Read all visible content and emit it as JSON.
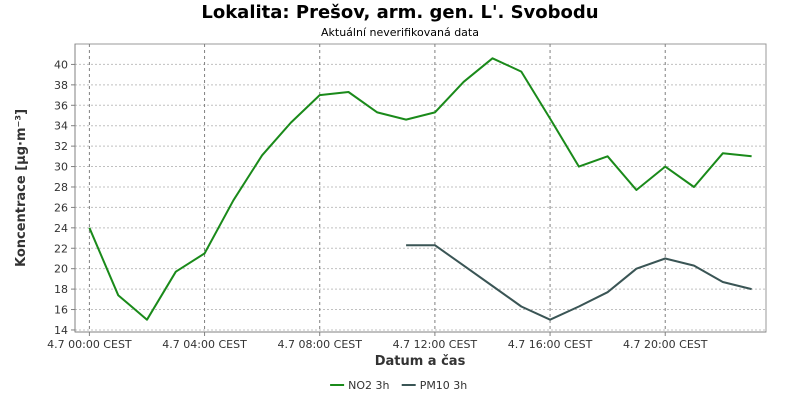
{
  "chart_data": {
    "type": "line",
    "title": "Lokalita: Prešov, arm. gen. L'. Svobodu",
    "subtitle": "Aktuální neverifikovaná data",
    "xlabel": "Datum a čas",
    "ylabel": "Koncentrace [µg·m⁻³]",
    "x_tick_labels": [
      "4.7 00:00 CEST",
      "4.7 04:00 CEST",
      "4.7 08:00 CEST",
      "4.7 12:00 CEST",
      "4.7 16:00 CEST",
      "4.7 20:00 CEST"
    ],
    "x_tick_hours": [
      0,
      4,
      8,
      12,
      16,
      20
    ],
    "xlim": [
      -0.5,
      23.5
    ],
    "ylim": [
      13.8,
      42
    ],
    "y_ticks": [
      14,
      16,
      18,
      20,
      22,
      24,
      26,
      28,
      30,
      32,
      34,
      36,
      38,
      40
    ],
    "grid": true,
    "legend_position": "bottom-center",
    "series": [
      {
        "name": "NO2 3h",
        "color": "#1a8a1a",
        "x": [
          0,
          1,
          2,
          3,
          4,
          5,
          6,
          7,
          8,
          9,
          10,
          11,
          12,
          13,
          14,
          15,
          16,
          17,
          18,
          19,
          20,
          21,
          22,
          23
        ],
        "y": [
          24.0,
          17.4,
          15.0,
          19.7,
          21.5,
          26.7,
          31.1,
          34.3,
          37.0,
          37.3,
          35.3,
          34.6,
          35.3,
          38.3,
          40.6,
          39.3,
          34.7,
          30.0,
          31.0,
          27.7,
          30.0,
          28.0,
          31.3,
          31.0
        ]
      },
      {
        "name": "PM10 3h",
        "color": "#3a5555",
        "x": [
          11,
          12,
          13,
          14,
          15,
          16,
          17,
          18,
          19,
          20,
          21,
          22,
          23
        ],
        "y": [
          22.3,
          22.3,
          20.3,
          18.3,
          16.3,
          15.0,
          16.3,
          17.7,
          20.0,
          21.0,
          20.3,
          18.7,
          18.0
        ]
      }
    ]
  }
}
